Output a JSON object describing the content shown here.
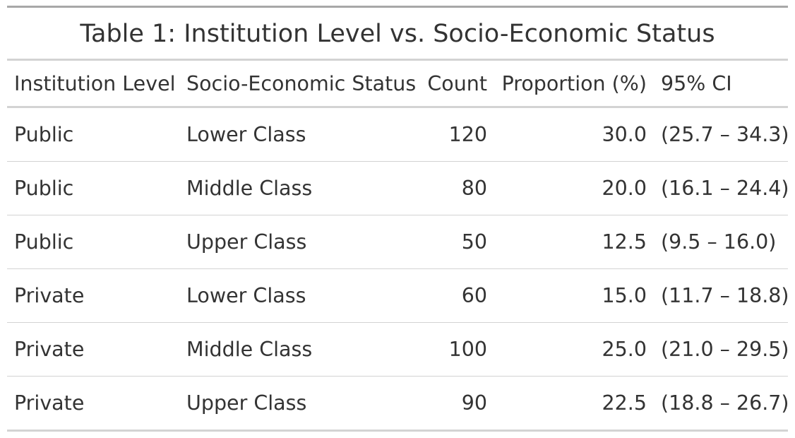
{
  "table": {
    "title": "Table 1: Institution Level vs. Socio-Economic Status",
    "columns": [
      "Institution Level",
      "Socio-Economic Status",
      "Count",
      "Proportion (%)",
      "95% CI"
    ],
    "rows": [
      [
        "Public",
        "Lower Class",
        "120",
        "30.0",
        "(25.7 – 34.3)"
      ],
      [
        "Public",
        "Middle Class",
        "80",
        "20.0",
        "(16.1 – 24.4)"
      ],
      [
        "Public",
        "Upper Class",
        "50",
        "12.5",
        "(9.5 – 16.0)"
      ],
      [
        "Private",
        "Lower Class",
        "60",
        "15.0",
        "(11.7 – 18.8)"
      ],
      [
        "Private",
        "Middle Class",
        "100",
        "25.0",
        "(21.0 – 29.5)"
      ],
      [
        "Private",
        "Upper Class",
        "90",
        "22.5",
        "(18.8 – 26.7)"
      ]
    ]
  }
}
